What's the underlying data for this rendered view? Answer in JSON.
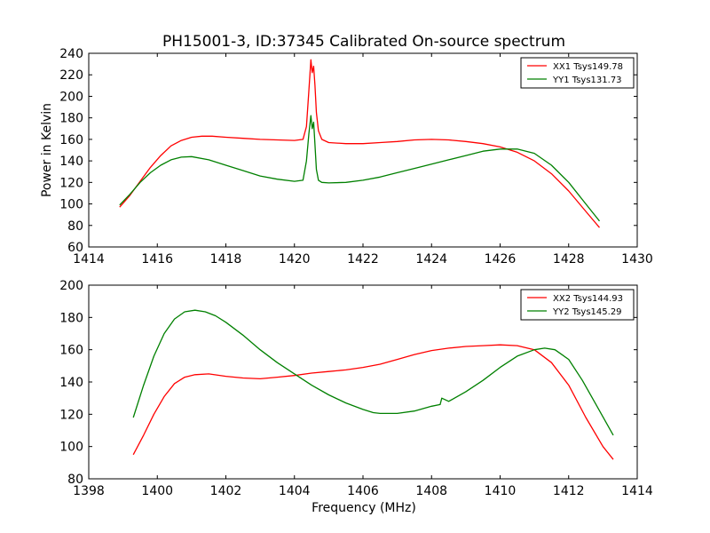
{
  "chart_data": [
    {
      "type": "line",
      "title": "PH15001-3, ID:37345 Calibrated On-source spectrum",
      "xlabel": "",
      "ylabel": "Power in Kelvin",
      "xlim": [
        1414,
        1430
      ],
      "ylim": [
        60,
        240
      ],
      "xticks": [
        1414,
        1416,
        1418,
        1420,
        1422,
        1424,
        1426,
        1428,
        1430
      ],
      "yticks": [
        60,
        80,
        100,
        120,
        140,
        160,
        180,
        200,
        220,
        240
      ],
      "legend_position": "top-right",
      "series": [
        {
          "name": "XX1 Tsys149.78",
          "color": "#ff0000",
          "x": [
            1414.9,
            1415.2,
            1415.5,
            1415.8,
            1416.1,
            1416.4,
            1416.7,
            1417.0,
            1417.3,
            1417.6,
            1418.0,
            1418.5,
            1419.0,
            1419.5,
            1420.0,
            1420.25,
            1420.35,
            1420.42,
            1420.48,
            1420.52,
            1420.56,
            1420.6,
            1420.64,
            1420.7,
            1420.8,
            1421.0,
            1421.5,
            1422.0,
            1422.5,
            1423.0,
            1423.5,
            1424.0,
            1424.5,
            1425.0,
            1425.5,
            1426.0,
            1426.5,
            1427.0,
            1427.5,
            1428.0,
            1428.5,
            1428.9
          ],
          "y": [
            97,
            108,
            121,
            134,
            145,
            154,
            159,
            162,
            163,
            163,
            162,
            161,
            160,
            159.5,
            159,
            160,
            172,
            205,
            234,
            222,
            228,
            210,
            185,
            168,
            160,
            157,
            156,
            156,
            157,
            158,
            159.5,
            160,
            159.5,
            158,
            156,
            153,
            148,
            140,
            128,
            112,
            93,
            78
          ]
        },
        {
          "name": "YY1 Tsys131.73",
          "color": "#008000",
          "x": [
            1414.9,
            1415.2,
            1415.5,
            1415.8,
            1416.1,
            1416.4,
            1416.7,
            1417.0,
            1417.5,
            1418.0,
            1418.5,
            1419.0,
            1419.5,
            1420.0,
            1420.25,
            1420.35,
            1420.42,
            1420.48,
            1420.52,
            1420.56,
            1420.6,
            1420.64,
            1420.7,
            1420.8,
            1421.0,
            1421.5,
            1422.0,
            1422.5,
            1423.0,
            1423.5,
            1424.0,
            1424.5,
            1425.0,
            1425.5,
            1426.0,
            1426.5,
            1427.0,
            1427.5,
            1428.0,
            1428.5,
            1428.9
          ],
          "y": [
            99,
            109,
            120,
            129,
            136,
            141,
            143.5,
            144,
            141,
            136,
            131,
            126,
            123,
            121,
            122,
            140,
            165,
            182,
            170,
            176,
            155,
            132,
            122,
            120,
            119.5,
            120,
            122,
            125,
            129,
            133,
            137,
            141,
            145,
            149,
            151,
            151,
            147,
            136,
            120,
            100,
            84
          ]
        }
      ]
    },
    {
      "type": "line",
      "title": "",
      "xlabel": "Frequency (MHz)",
      "ylabel": "",
      "xlim": [
        1398,
        1414
      ],
      "ylim": [
        80,
        200
      ],
      "xticks": [
        1398,
        1400,
        1402,
        1404,
        1406,
        1408,
        1410,
        1412,
        1414
      ],
      "yticks": [
        80,
        100,
        120,
        140,
        160,
        180,
        200
      ],
      "legend_position": "top-right",
      "series": [
        {
          "name": "XX2 Tsys144.93",
          "color": "#ff0000",
          "x": [
            1399.3,
            1399.6,
            1399.9,
            1400.2,
            1400.5,
            1400.8,
            1401.1,
            1401.5,
            1402.0,
            1402.5,
            1403.0,
            1403.5,
            1404.0,
            1404.5,
            1405.0,
            1405.5,
            1406.0,
            1406.5,
            1407.0,
            1407.5,
            1408.0,
            1408.5,
            1409.0,
            1409.5,
            1410.0,
            1410.5,
            1411.0,
            1411.5,
            1412.0,
            1412.5,
            1413.0,
            1413.3
          ],
          "y": [
            95,
            107,
            120,
            131,
            139,
            143,
            144.5,
            145,
            143.5,
            142.5,
            142,
            143,
            144,
            145.5,
            146.5,
            147.5,
            149,
            151,
            154,
            157,
            159.5,
            161,
            162,
            162.5,
            163,
            162.5,
            160,
            152,
            138,
            118,
            100,
            92
          ]
        },
        {
          "name": "YY2 Tsys145.29",
          "color": "#008000",
          "x": [
            1399.3,
            1399.6,
            1399.9,
            1400.2,
            1400.5,
            1400.8,
            1401.1,
            1401.4,
            1401.7,
            1402.0,
            1402.5,
            1403.0,
            1403.5,
            1404.0,
            1404.5,
            1405.0,
            1405.5,
            1406.0,
            1406.3,
            1406.5,
            1407.0,
            1407.5,
            1408.0,
            1408.25,
            1408.3,
            1408.5,
            1409.0,
            1409.5,
            1410.0,
            1410.5,
            1411.0,
            1411.3,
            1411.6,
            1412.0,
            1412.4,
            1412.8,
            1413.3
          ],
          "y": [
            118,
            138,
            156,
            170,
            179,
            183.5,
            184.5,
            183.5,
            181,
            177,
            169,
            160,
            152,
            145,
            138,
            132,
            127,
            123,
            121,
            120.5,
            120.5,
            122,
            125,
            126,
            130,
            128,
            134,
            141,
            149,
            156,
            160,
            161,
            160,
            154,
            141,
            126,
            107
          ]
        }
      ]
    }
  ]
}
